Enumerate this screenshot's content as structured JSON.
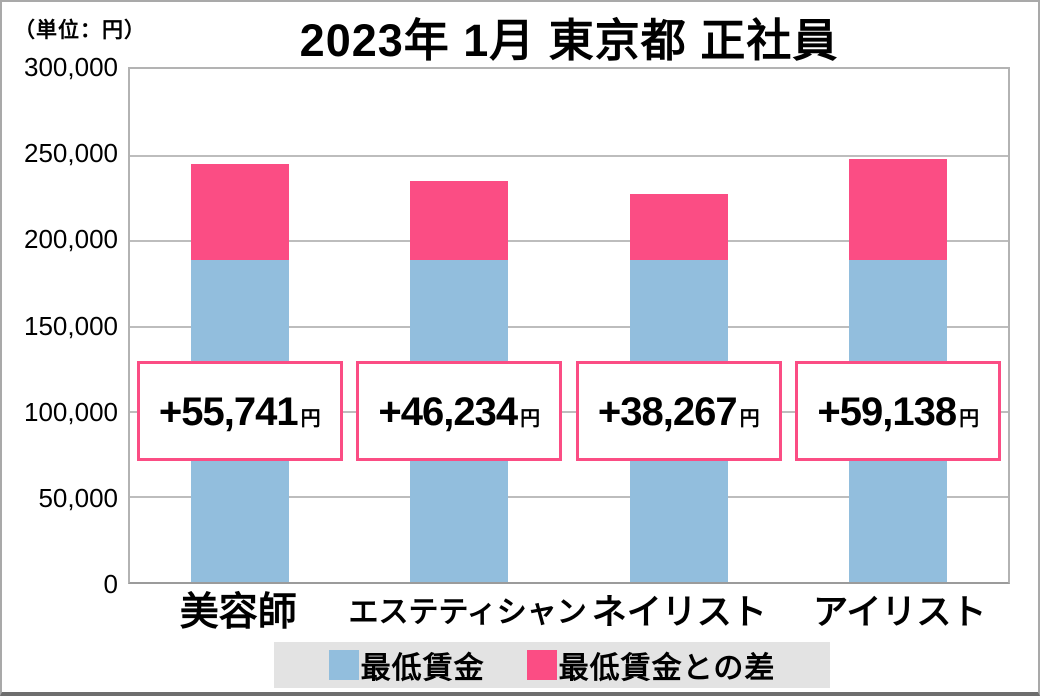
{
  "title": "2023年 1月 東京都 正社員",
  "unit_label": "（単位：円）",
  "chart_data": {
    "type": "bar",
    "stacked": true,
    "title": "2023年 1月 東京都 正社員",
    "unit": "円",
    "categories": [
      "美容師",
      "エステティシャン",
      "ネイリスト",
      "アイリスト"
    ],
    "series": [
      {
        "name": "最低賃金",
        "color": "#92BEDD",
        "values": [
          188500,
          188500,
          188500,
          188500
        ]
      },
      {
        "name": "最低賃金との差",
        "color": "#FB4D84",
        "values": [
          55741,
          46234,
          38267,
          59138
        ]
      }
    ],
    "annotations": [
      {
        "value": "+55,741",
        "unit": "円"
      },
      {
        "value": "+46,234",
        "unit": "円"
      },
      {
        "value": "+38,267",
        "unit": "円"
      },
      {
        "value": "+59,138",
        "unit": "円"
      }
    ],
    "y_ticks": [
      "300,000",
      "250,000",
      "200,000",
      "150,000",
      "100,000",
      "50,000",
      "0"
    ],
    "ylim": [
      0,
      300000
    ],
    "grid": true,
    "legend_position": "bottom"
  },
  "legend": {
    "items": [
      {
        "label": "最低賃金",
        "color": "#92BEDD"
      },
      {
        "label": "最低賃金との差",
        "color": "#FB4D84"
      }
    ]
  },
  "colors": {
    "bar_blue": "#92BEDD",
    "bar_pink": "#FB4D84",
    "annotation_border": "#FB4D84",
    "legend_background": "#E3E3E3",
    "gridline": "#BDBDBD"
  }
}
